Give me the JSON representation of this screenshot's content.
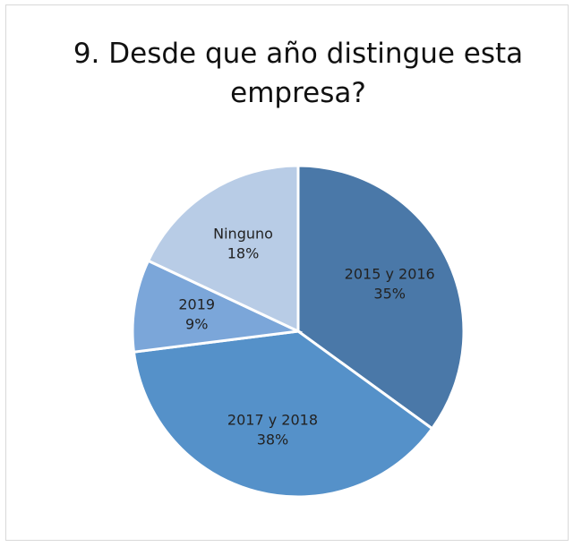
{
  "chart_data": {
    "type": "pie",
    "title": "9. Desde que año distingue esta empresa?",
    "categories": [
      "2015 y 2016",
      "2017 y 2018",
      "2019",
      "Ninguno"
    ],
    "values": [
      35,
      38,
      9,
      18
    ],
    "value_labels": [
      "35%",
      "38%",
      "9%",
      "18%"
    ],
    "colors": [
      "#4a78a8",
      "#5591c9",
      "#7ba6d9",
      "#b8cce6"
    ]
  }
}
